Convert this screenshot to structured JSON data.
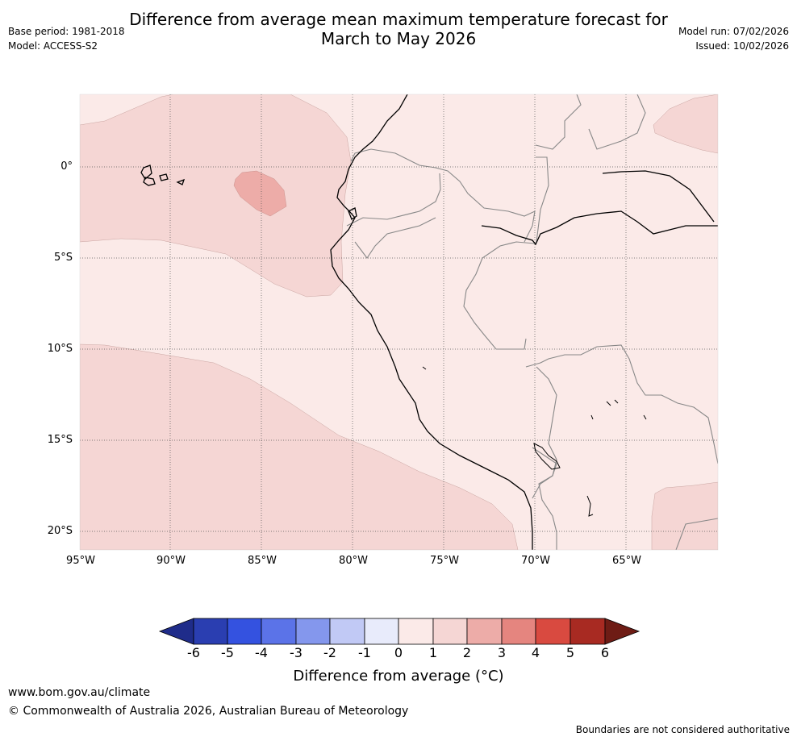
{
  "title": {
    "line1": "Difference from average mean maximum temperature forecast for",
    "line2": "March to May 2026"
  },
  "meta": {
    "base_period": "Base period: 1981-2018",
    "model": "Model: ACCESS-S2",
    "model_run": "Model run: 07/02/2026",
    "issued": "Issued: 10/02/2026"
  },
  "map": {
    "latitude_labels": [
      "0°",
      "5°S",
      "10°S",
      "15°S",
      "20°S"
    ],
    "longitude_labels": [
      "95°W",
      "90°W",
      "85°W",
      "80°W",
      "75°W",
      "70°W",
      "65°W"
    ]
  },
  "colorbar": {
    "ticks": [
      "-6",
      "-5",
      "-4",
      "-3",
      "-2",
      "-1",
      "0",
      "1",
      "2",
      "3",
      "4",
      "5",
      "6"
    ],
    "colors": [
      "#1f2c8a",
      "#2a3eb1",
      "#3452e0",
      "#5b73e8",
      "#8497ed",
      "#c1c9f5",
      "#e8ebfb",
      "#fbeae8",
      "#f5d6d4",
      "#edaca8",
      "#e5857f",
      "#d94a40",
      "#a82a22",
      "#6e1c15"
    ],
    "label": "Difference from average (°C)"
  },
  "footer": {
    "website": "www.bom.gov.au/climate",
    "copyright": "© Commonwealth of Australia 2026, Australian Bureau of Meteorology",
    "disclaimer": "Boundaries are not considered authoritative"
  }
}
